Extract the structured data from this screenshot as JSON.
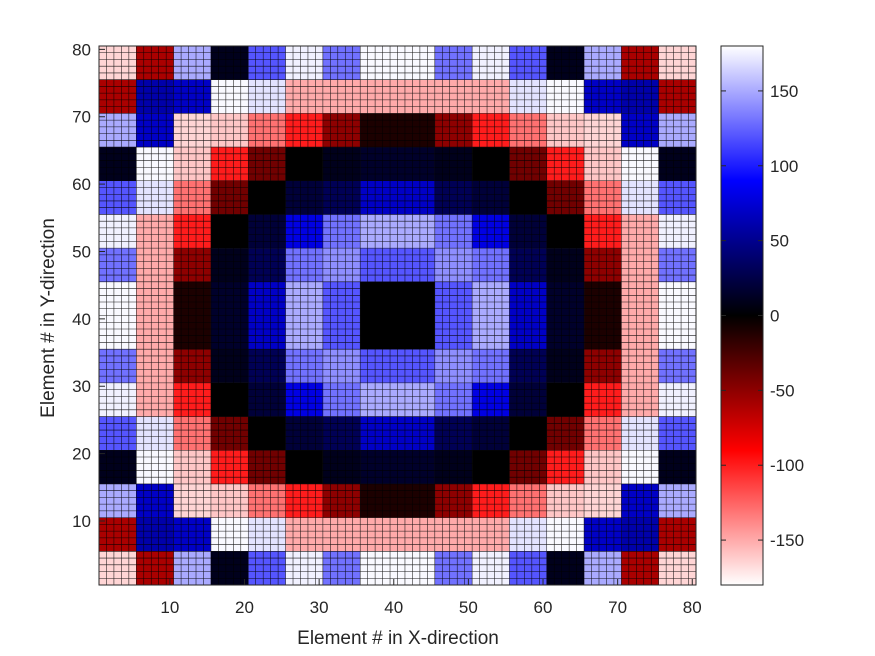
{
  "chart_data": {
    "type": "heatmap",
    "title": "",
    "xlabel": "Element # in X-direction",
    "ylabel": "Element # in Y-direction",
    "xlim": [
      0.5,
      80.5
    ],
    "ylim": [
      0.5,
      80.5
    ],
    "x_ticks": [
      10,
      20,
      30,
      40,
      50,
      60,
      70,
      80
    ],
    "y_ticks": [
      10,
      20,
      30,
      40,
      50,
      60,
      70,
      80
    ],
    "grid": "mesh lines on every element",
    "block_size": 5,
    "blocks_per_side": 16,
    "values_blocks_description": "16x16 grid of 5x5-element blocks; rows listed from y=1-5 (bottom) to y=76-80 (top), columns from x=1-5 (left) to x=76-80 (right); values are phase in degrees",
    "values_blocks": [
      [
        -165,
        -60,
        150,
        10,
        120,
        175,
        130,
        178,
        178,
        130,
        175,
        120,
        10,
        150,
        -60,
        -165
      ],
      [
        -60,
        60,
        70,
        178,
        170,
        -150,
        -150,
        -150,
        -150,
        -150,
        -150,
        170,
        178,
        70,
        60,
        -60
      ],
      [
        150,
        70,
        -165,
        -160,
        -130,
        -100,
        -50,
        -10,
        -10,
        -50,
        -100,
        -130,
        -160,
        -165,
        70,
        150
      ],
      [
        10,
        178,
        -160,
        -100,
        -40,
        0,
        10,
        15,
        15,
        10,
        0,
        -40,
        -100,
        -160,
        178,
        10
      ],
      [
        120,
        170,
        -130,
        -40,
        0,
        20,
        30,
        70,
        70,
        30,
        20,
        0,
        -40,
        -130,
        170,
        120
      ],
      [
        175,
        -150,
        -100,
        0,
        20,
        80,
        130,
        150,
        150,
        130,
        80,
        20,
        0,
        -100,
        -150,
        175
      ],
      [
        130,
        -150,
        -50,
        10,
        30,
        130,
        140,
        120,
        120,
        140,
        130,
        30,
        10,
        -50,
        -150,
        130
      ],
      [
        178,
        -150,
        -10,
        15,
        70,
        150,
        120,
        0,
        0,
        120,
        150,
        70,
        15,
        -10,
        -150,
        178
      ],
      [
        178,
        -150,
        -10,
        15,
        70,
        150,
        120,
        0,
        0,
        120,
        150,
        70,
        15,
        -10,
        -150,
        178
      ],
      [
        130,
        -150,
        -50,
        10,
        30,
        130,
        140,
        120,
        120,
        140,
        130,
        30,
        10,
        -50,
        -150,
        130
      ],
      [
        175,
        -150,
        -100,
        0,
        20,
        80,
        130,
        150,
        150,
        130,
        80,
        20,
        0,
        -100,
        -150,
        175
      ],
      [
        120,
        170,
        -130,
        -40,
        0,
        20,
        30,
        70,
        70,
        30,
        20,
        0,
        -40,
        -130,
        170,
        120
      ],
      [
        10,
        178,
        -160,
        -100,
        -40,
        0,
        10,
        15,
        15,
        10,
        0,
        -40,
        -100,
        -160,
        178,
        10
      ],
      [
        150,
        70,
        -165,
        -160,
        -130,
        -100,
        -50,
        -10,
        -10,
        -50,
        -100,
        -130,
        -160,
        -165,
        70,
        150
      ],
      [
        -60,
        60,
        70,
        178,
        170,
        -150,
        -150,
        -150,
        -150,
        -150,
        -150,
        170,
        178,
        70,
        60,
        -60
      ],
      [
        -165,
        -60,
        150,
        10,
        120,
        175,
        130,
        178,
        178,
        130,
        175,
        120,
        10,
        150,
        -60,
        -165
      ]
    ],
    "colorbar": {
      "ticks": [
        150,
        100,
        50,
        0,
        -50,
        -100,
        -150
      ],
      "tick_labels": [
        "150",
        "100",
        "50",
        "0",
        "-50",
        "-100",
        "-150"
      ],
      "clim": [
        -180,
        180
      ],
      "colormap_stops": [
        {
          "value": -180,
          "color": "#ffffff"
        },
        {
          "value": -90,
          "color": "#ff0000"
        },
        {
          "value": 0,
          "color": "#000000"
        },
        {
          "value": 90,
          "color": "#0000ff"
        },
        {
          "value": 180,
          "color": "#ffffff"
        }
      ],
      "placement": "right"
    }
  }
}
